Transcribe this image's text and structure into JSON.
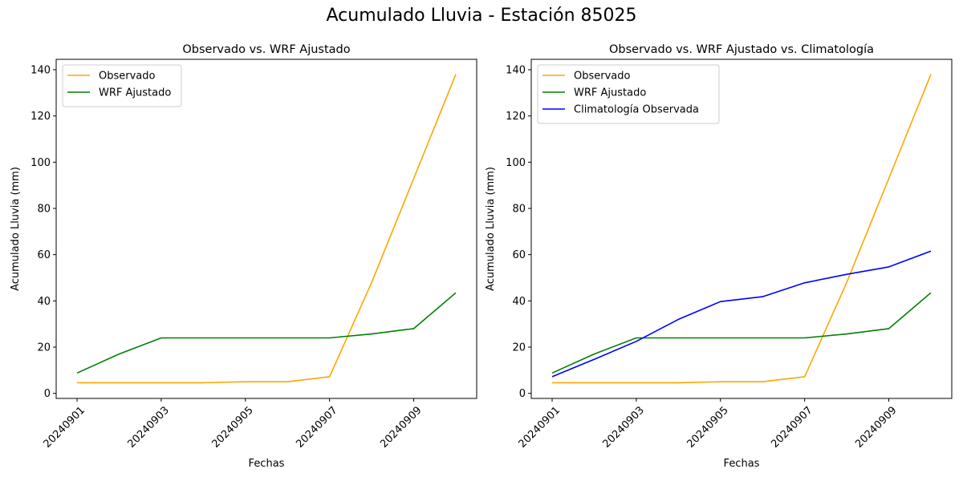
{
  "figure": {
    "suptitle": "Acumulado Lluvia - Estación 85025"
  },
  "chart_data": [
    {
      "type": "line",
      "title": "Observado vs. WRF Ajustado",
      "xlabel": "Fechas",
      "ylabel": "Acumulado Lluvia (mm)",
      "x": [
        "20240901",
        "20240902",
        "20240903",
        "20240904",
        "20240905",
        "20240906",
        "20240907",
        "20240908",
        "20240909",
        "20240910"
      ],
      "xticks": [
        "20240901",
        "20240903",
        "20240905",
        "20240907",
        "20240909"
      ],
      "yticks": [
        0,
        20,
        40,
        60,
        80,
        100,
        120,
        140
      ],
      "ylim": [
        -2.2,
        144.5
      ],
      "grid": false,
      "legend": "top-left",
      "series": [
        {
          "name": "Observado",
          "color": "#ffa500",
          "values": [
            4.6,
            4.6,
            4.6,
            4.6,
            5.0,
            5.0,
            7.2,
            48.0,
            93.0,
            138.0
          ]
        },
        {
          "name": "WRF Ajustado",
          "color": "#008000",
          "values": [
            8.8,
            17.0,
            24.0,
            24.0,
            24.0,
            24.0,
            24.0,
            25.7,
            28.0,
            43.5
          ]
        }
      ]
    },
    {
      "type": "line",
      "title": "Observado vs. WRF Ajustado vs. Climatología",
      "xlabel": "Fechas",
      "ylabel": "Acumulado Lluvia (mm)",
      "x": [
        "20240901",
        "20240902",
        "20240903",
        "20240904",
        "20240905",
        "20240906",
        "20240907",
        "20240908",
        "20240909",
        "20240910"
      ],
      "xticks": [
        "20240901",
        "20240903",
        "20240905",
        "20240907",
        "20240909"
      ],
      "yticks": [
        0,
        20,
        40,
        60,
        80,
        100,
        120,
        140
      ],
      "ylim": [
        -2.2,
        144.5
      ],
      "grid": false,
      "legend": "top-left",
      "series": [
        {
          "name": "Observado",
          "color": "#ffa500",
          "values": [
            4.6,
            4.6,
            4.6,
            4.6,
            5.0,
            5.0,
            7.2,
            48.0,
            93.0,
            138.0
          ]
        },
        {
          "name": "WRF Ajustado",
          "color": "#008000",
          "values": [
            8.8,
            17.0,
            24.0,
            24.0,
            24.0,
            24.0,
            24.0,
            25.7,
            28.0,
            43.5
          ]
        },
        {
          "name": "Climatología Observada",
          "color": "#0000ff",
          "values": [
            7.2,
            14.7,
            22.5,
            32.0,
            39.7,
            41.8,
            47.8,
            51.5,
            54.7,
            61.5
          ]
        }
      ]
    }
  ]
}
